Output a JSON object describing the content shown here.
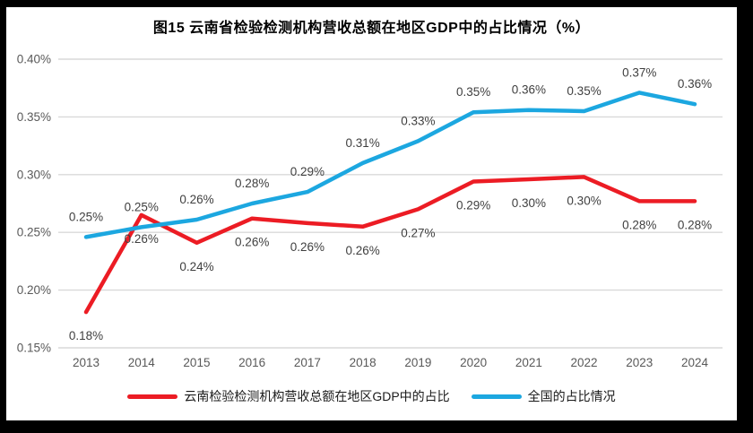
{
  "frame": {
    "border_color": "#000000",
    "chart_background": "#ffffff"
  },
  "chart_data": {
    "type": "line",
    "title": "图15 云南省检验检测机构营收总额在地区GDP中的占比情况（%）",
    "categories": [
      "2013",
      "2014",
      "2015",
      "2016",
      "2017",
      "2018",
      "2019",
      "2020",
      "2021",
      "2022",
      "2023",
      "2024"
    ],
    "y_axis": {
      "min": 0.15,
      "max": 0.4,
      "step": 0.05,
      "tick_labels": [
        "0.40%",
        "0.35%",
        "0.30%",
        "0.25%",
        "0.20%",
        "0.15%"
      ],
      "tick_color": "#595959"
    },
    "grid": true,
    "gridline_color": "#d9d9d9",
    "data_label_color": "#3f3f3f",
    "legend_position": "bottom",
    "series": [
      {
        "id": "yunnan",
        "name": "云南检验检测机构营收总额在地区GDP中的占比",
        "color": "#ec1c24",
        "label_position": "below",
        "values": [
          0.18,
          0.26,
          0.24,
          0.26,
          0.26,
          0.26,
          0.27,
          0.29,
          0.3,
          0.3,
          0.28,
          0.28
        ],
        "data_labels": [
          "0.18%",
          "0.26%",
          "0.24%",
          "0.26%",
          "0.26%",
          "0.26%",
          "0.27%",
          "0.29%",
          "0.30%",
          "0.30%",
          "0.28%",
          "0.28%"
        ],
        "plot_values": [
          0.181,
          0.265,
          0.241,
          0.262,
          0.258,
          0.255,
          0.27,
          0.294,
          0.296,
          0.298,
          0.277,
          0.277
        ]
      },
      {
        "id": "national",
        "name": "全国的占比情况",
        "color": "#1ca7e0",
        "label_position": "above",
        "values": [
          0.25,
          0.25,
          0.26,
          0.28,
          0.29,
          0.31,
          0.33,
          0.35,
          0.36,
          0.35,
          0.37,
          0.36
        ],
        "data_labels": [
          "0.25%",
          "0.25%",
          "0.26%",
          "0.28%",
          "0.29%",
          "0.31%",
          "0.33%",
          "0.35%",
          "0.36%",
          "0.35%",
          "0.37%",
          "0.36%"
        ],
        "plot_values": [
          0.246,
          0.2545,
          0.261,
          0.275,
          0.285,
          0.31,
          0.329,
          0.354,
          0.356,
          0.355,
          0.371,
          0.361
        ]
      }
    ]
  }
}
